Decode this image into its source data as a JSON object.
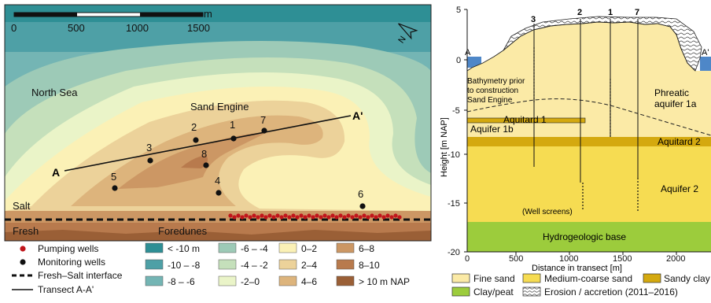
{
  "map": {
    "scalebar": {
      "ticks": [
        "0",
        "500",
        "1000",
        "1500"
      ],
      "unit": "m"
    },
    "labels": {
      "sea": "North Sea",
      "engine": "Sand Engine",
      "salt": "Salt",
      "fresh": "Fresh",
      "foredunes": "Foredunes",
      "a": "A",
      "a_prime": "A'"
    },
    "wells": [
      "1",
      "2",
      "3",
      "4",
      "5",
      "6",
      "7",
      "8"
    ],
    "north_arrow": "N",
    "legend": {
      "pumping": "Pumping wells",
      "monitoring": "Monitoring wells",
      "interface": "Fresh–Salt interface",
      "transect": "Transect A-A'",
      "classes": [
        {
          "label": "< -10 m",
          "color": "#2e8f95"
        },
        {
          "label": "-10 – -8",
          "color": "#4ea0a6"
        },
        {
          "label": "-8 – -6",
          "color": "#74b5b4"
        },
        {
          "label": "-6 – -4",
          "color": "#9dcab7"
        },
        {
          "label": "-4 – -2",
          "color": "#c5e0bb"
        },
        {
          "label": "-2–0",
          "color": "#eaf4c8"
        },
        {
          "label": "0–2",
          "color": "#fbf1b6"
        },
        {
          "label": "2–4",
          "color": "#ecd29a"
        },
        {
          "label": "4–6",
          "color": "#ddb47c"
        },
        {
          "label": "6–8",
          "color": "#cc9764"
        },
        {
          "label": "8–10",
          "color": "#b87a4d"
        },
        {
          "label": "> 10 m NAP",
          "color": "#9a5f36"
        }
      ]
    }
  },
  "section": {
    "ylabel": "Height [m NAP]",
    "xlabel": "Distance in transect [m]",
    "yticks": [
      "5",
      "0",
      "-5",
      "-10",
      "-15",
      "-20"
    ],
    "xticks": [
      "0",
      "500",
      "1000",
      "1500",
      "2000"
    ],
    "ends": {
      "a": "A",
      "a_prime": "A'"
    },
    "wells": [
      "3",
      "2",
      "1",
      "7"
    ],
    "units": {
      "bathymetry": [
        "Bathymetry prior",
        "to construction",
        "Sand Engine"
      ],
      "phreatic": [
        "Phreatic",
        "aquifer 1a"
      ],
      "aquitard1": "Aquitard 1",
      "aquifer1b": "Aquifer 1b",
      "aquitard2": "Aquitard 2",
      "aquifer2": "Aquifer 2",
      "base": "Hydrogeologic base",
      "screens": "(Well screens)"
    },
    "legend": [
      {
        "label": "Fine sand",
        "color": "#fbeaa6"
      },
      {
        "label": "Medium-coarse sand",
        "color": "#f6dc52"
      },
      {
        "label": "Sandy clay",
        "color": "#d4a90f"
      },
      {
        "label": "Clay/peat",
        "color": "#9ccc3c"
      },
      {
        "label": "Erosion / accretion (2011–2016)",
        "color": "#ffffff"
      }
    ]
  }
}
